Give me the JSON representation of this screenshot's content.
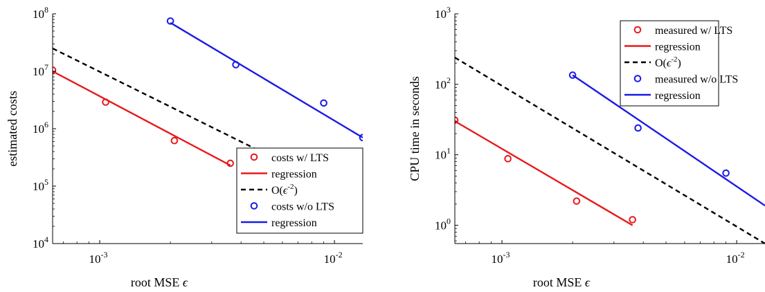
{
  "chart_data": [
    {
      "type": "scatter",
      "xlabel": "root MSE ",
      "xlabel_symbol": "ϵ",
      "ylabel": "estimated costs",
      "xscale": "log",
      "yscale": "log",
      "xlim": [
        0.00063,
        0.0132
      ],
      "ylim": [
        10000,
        100000000
      ],
      "x_ticks": [
        {
          "value": 0.001,
          "base": "10",
          "exp": "-3"
        },
        {
          "value": 0.01,
          "base": "10",
          "exp": "-2"
        }
      ],
      "y_ticks": [
        {
          "value": 10000,
          "base": "10",
          "exp": "4"
        },
        {
          "value": 100000,
          "base": "10",
          "exp": "5"
        },
        {
          "value": 1000000,
          "base": "10",
          "exp": "6"
        },
        {
          "value": 10000000,
          "base": "10",
          "exp": "7"
        },
        {
          "value": 100000000,
          "base": "10",
          "exp": "8"
        }
      ],
      "legend_position": "bottom-right",
      "series": [
        {
          "name": "costs w/ LTS",
          "kind": "markers",
          "color": "#e8191c",
          "x": [
            0.00063,
            0.00106,
            0.00208,
            0.0036
          ],
          "y": [
            10500000,
            2900000,
            620000,
            250000
          ]
        },
        {
          "name": "regression",
          "kind": "line",
          "style": "solid",
          "color": "#e8191c",
          "x": [
            0.00063,
            0.0036
          ],
          "y": [
            10000000,
            230000
          ]
        },
        {
          "name": "O(",
          "name_symbol": "ϵ",
          "name_exp": "-2",
          "name_end": ")",
          "kind": "line",
          "style": "dashed",
          "color": "#000000",
          "x": [
            0.00063,
            0.0132
          ],
          "y": [
            25000000,
            53000
          ]
        },
        {
          "name": "costs w/o LTS",
          "kind": "markers",
          "color": "#1a1ae6",
          "x": [
            0.002,
            0.0038,
            0.009,
            0.0132
          ],
          "y": [
            75000000,
            13000000,
            2800000,
            700000
          ]
        },
        {
          "name": "regression",
          "kind": "line",
          "style": "solid",
          "color": "#1a1ae6",
          "x": [
            0.002,
            0.0132
          ],
          "y": [
            70000000,
            700000
          ]
        }
      ]
    },
    {
      "type": "scatter",
      "xlabel": "root MSE ",
      "xlabel_symbol": "ϵ",
      "ylabel": "CPU time in seconds",
      "xscale": "log",
      "yscale": "log",
      "xlim": [
        0.00063,
        0.0132
      ],
      "ylim": [
        0.55,
        1000
      ],
      "x_ticks": [
        {
          "value": 0.001,
          "base": "10",
          "exp": "-3"
        },
        {
          "value": 0.01,
          "base": "10",
          "exp": "-2"
        }
      ],
      "y_ticks": [
        {
          "value": 1,
          "base": "10",
          "exp": "0"
        },
        {
          "value": 10,
          "base": "10",
          "exp": "1"
        },
        {
          "value": 100,
          "base": "10",
          "exp": "2"
        },
        {
          "value": 1000,
          "base": "10",
          "exp": "3"
        }
      ],
      "legend_position": "top-right",
      "series": [
        {
          "name": "measured w/ LTS",
          "kind": "markers",
          "color": "#e8191c",
          "x": [
            0.00063,
            0.00106,
            0.00208,
            0.0036
          ],
          "y": [
            31,
            8.8,
            2.2,
            1.2
          ]
        },
        {
          "name": "regression",
          "kind": "line",
          "style": "solid",
          "color": "#e8191c",
          "x": [
            0.00063,
            0.0036
          ],
          "y": [
            30,
            1.0
          ]
        },
        {
          "name": "O(",
          "name_symbol": "ϵ",
          "name_exp": "-2",
          "name_end": ")",
          "kind": "line",
          "style": "dashed",
          "color": "#000000",
          "x": [
            0.00063,
            0.0132
          ],
          "y": [
            240,
            0.55
          ]
        },
        {
          "name": "measured w/o LTS",
          "kind": "markers",
          "color": "#1a1ae6",
          "x": [
            0.002,
            0.0038,
            0.009
          ],
          "y": [
            135,
            24,
            5.5
          ]
        },
        {
          "name": "regression",
          "kind": "line",
          "style": "solid",
          "color": "#1a1ae6",
          "x": [
            0.002,
            0.0132
          ],
          "y": [
            135,
            1.9
          ]
        }
      ]
    }
  ]
}
